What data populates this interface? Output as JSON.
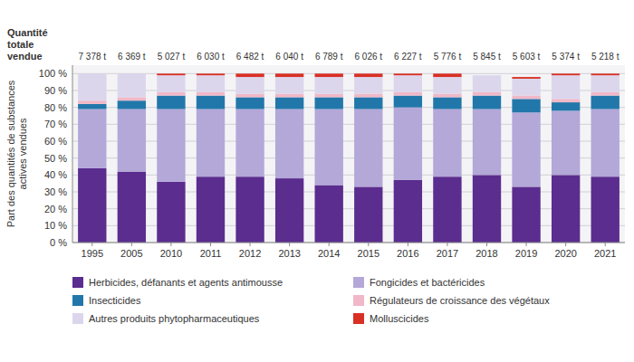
{
  "chart_data": {
    "type": "bar",
    "stacked": true,
    "ylabel": "Part des quantités de substances\nactives vendues",
    "annotations": [
      "Quantité\ntotale\nvendue"
    ],
    "categories": [
      "1995",
      "2005",
      "2010",
      "2011",
      "2012",
      "2013",
      "2014",
      "2015",
      "2016",
      "2017",
      "2018",
      "2019",
      "2020",
      "2021"
    ],
    "totals": [
      "7 378 t",
      "6 369 t",
      "5 027 t",
      "6 030 t",
      "6 482 t",
      "6 040 t",
      "6 789 t",
      "6 026 t",
      "6 227 t",
      "5 776 t",
      "5 845 t",
      "5 603 t",
      "5 374 t",
      "5 218 t"
    ],
    "series": [
      {
        "name": "Herbicides, défanants et agents antimousse",
        "color": "#5b2d8e",
        "values": [
          44,
          42,
          36,
          39,
          39,
          38,
          34,
          33,
          37,
          39,
          40,
          33,
          40,
          39
        ]
      },
      {
        "name": "Fongicides et bactéricides",
        "color": "#b3a8d8",
        "values": [
          35,
          37,
          43,
          40,
          40,
          41,
          45,
          46,
          43,
          40,
          39,
          44,
          38,
          40
        ]
      },
      {
        "name": "Insecticides",
        "color": "#2277aa",
        "values": [
          3,
          5,
          8,
          8,
          7,
          7,
          7,
          7,
          7,
          7,
          8,
          8,
          5,
          8
        ]
      },
      {
        "name": "Régulateurs de croissance des végétaux",
        "color": "#f0b8c8",
        "values": [
          2,
          2,
          2,
          2,
          2,
          2,
          2,
          2,
          2,
          2,
          2,
          2,
          2,
          2
        ]
      },
      {
        "name": "Autres produits phytopharmaceutiques",
        "color": "#dcd6ed",
        "values": [
          16,
          14,
          10,
          10,
          10,
          10,
          10,
          10,
          10,
          10,
          10,
          10,
          14,
          10
        ]
      },
      {
        "name": "Molluscicides",
        "color": "#d93025",
        "values": [
          0,
          0,
          1,
          1,
          2,
          2,
          2,
          2,
          1,
          2,
          0,
          1,
          1,
          1
        ]
      }
    ],
    "ylim": [
      0,
      105
    ],
    "yticks": [
      {
        "value": 0,
        "label": "0 %"
      },
      {
        "value": 10,
        "label": "10 %"
      },
      {
        "value": 20,
        "label": "20 %"
      },
      {
        "value": 30,
        "label": "30 %"
      },
      {
        "value": 40,
        "label": "40 %"
      },
      {
        "value": 50,
        "label": "50 %"
      },
      {
        "value": 60,
        "label": "60 %"
      },
      {
        "value": 70,
        "label": "70 %"
      },
      {
        "value": 80,
        "label": "80 %"
      },
      {
        "value": 90,
        "label": "90 %"
      },
      {
        "value": 100,
        "label": "100 %"
      }
    ],
    "grid": true,
    "legend": "bottom"
  }
}
